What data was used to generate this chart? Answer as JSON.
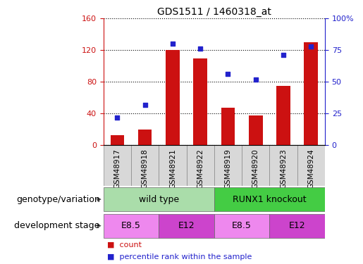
{
  "title": "GDS1511 / 1460318_at",
  "samples": [
    "GSM48917",
    "GSM48918",
    "GSM48921",
    "GSM48922",
    "GSM48919",
    "GSM48920",
    "GSM48923",
    "GSM48924"
  ],
  "counts": [
    13,
    20,
    120,
    110,
    47,
    38,
    75,
    130
  ],
  "percentiles": [
    22,
    32,
    80,
    76,
    56,
    52,
    71,
    78
  ],
  "ylim_left": [
    0,
    160
  ],
  "ylim_right": [
    0,
    100
  ],
  "yticks_left": [
    0,
    40,
    80,
    120,
    160
  ],
  "yticks_right": [
    0,
    25,
    50,
    75,
    100
  ],
  "yticklabels_right": [
    "0",
    "25",
    "50",
    "75",
    "100%"
  ],
  "bar_color": "#cc1111",
  "scatter_color": "#2222cc",
  "genotype_groups": [
    {
      "label": "wild type",
      "span": [
        0,
        4
      ],
      "color": "#aaddaa"
    },
    {
      "label": "RUNX1 knockout",
      "span": [
        4,
        8
      ],
      "color": "#44cc44"
    }
  ],
  "stage_groups": [
    {
      "label": "E8.5",
      "span": [
        0,
        2
      ],
      "color": "#ee88ee"
    },
    {
      "label": "E12",
      "span": [
        2,
        4
      ],
      "color": "#cc44cc"
    },
    {
      "label": "E8.5",
      "span": [
        4,
        6
      ],
      "color": "#ee88ee"
    },
    {
      "label": "E12",
      "span": [
        6,
        8
      ],
      "color": "#cc44cc"
    }
  ],
  "legend_items": [
    {
      "label": "count",
      "color": "#cc1111"
    },
    {
      "label": "percentile rank within the sample",
      "color": "#2222cc"
    }
  ],
  "tick_fontsize": 8,
  "row_label_fontsize": 9
}
